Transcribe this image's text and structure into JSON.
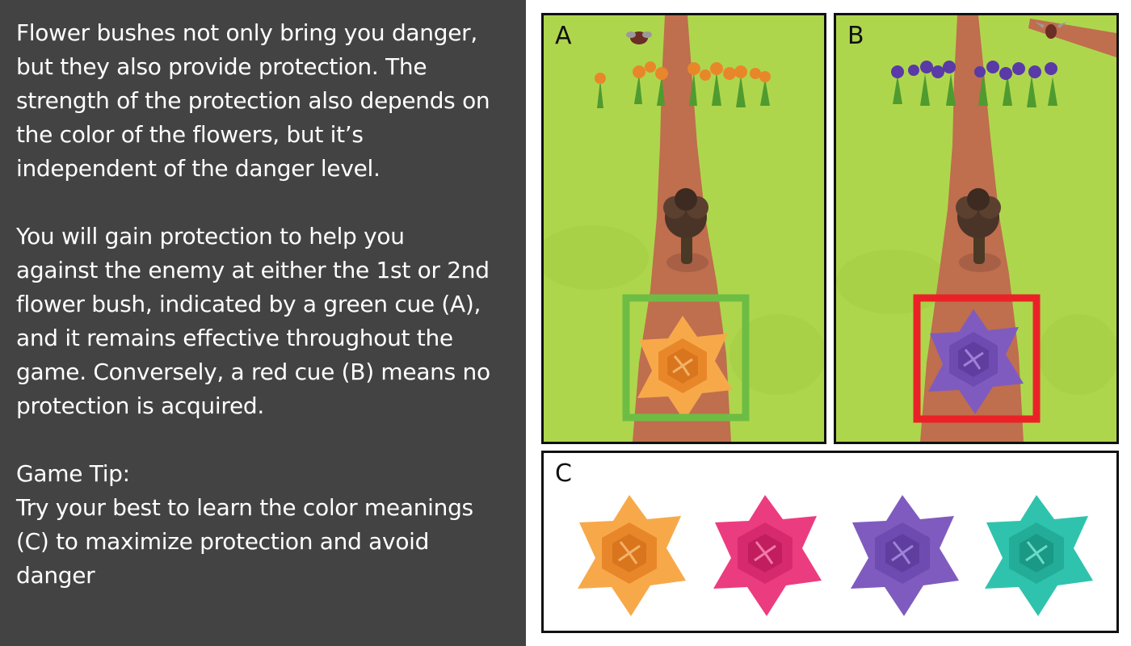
{
  "instructions": {
    "paragraph_1": "Flower bushes not only bring you danger,\nbut they also provide protection. The\nstrength of the protection also depends on\nthe color of the flowers, but it’s\nindependent of the danger level.",
    "paragraph_2": "You will gain protection to help you\nagainst the enemy at either the 1st or 2nd\nflower bush, indicated by a green cue (A),\nand it remains effective throughout the\ngame. Conversely, a red cue (B) means no\nprotection is acquired.",
    "paragraph_3": "Game Tip:\nTry your best to learn the color meanings\n(C) to maximize protection and avoid\ndanger"
  },
  "panels": {
    "a": {
      "label": "A",
      "flower_color": "#f7a94a",
      "cue_color": "#6dbd45",
      "cue": "green"
    },
    "b": {
      "label": "B",
      "flower_color": "#7f5bbf",
      "cue_color": "#ea2227",
      "cue": "red"
    },
    "c": {
      "label": "C"
    }
  },
  "flower_colors": [
    {
      "name": "orange",
      "color": "#f7a94a"
    },
    {
      "name": "pink",
      "color": "#ec3c80"
    },
    {
      "name": "purple",
      "color": "#7f5bbf"
    },
    {
      "name": "teal",
      "color": "#2fc3ad"
    }
  ],
  "colors": {
    "left_panel_bg": "#434343",
    "grass": "#aed64d",
    "path": "#bf6e4e",
    "orange_bloom": "#e8872a",
    "purple_bloom": "#5a3aa6"
  }
}
